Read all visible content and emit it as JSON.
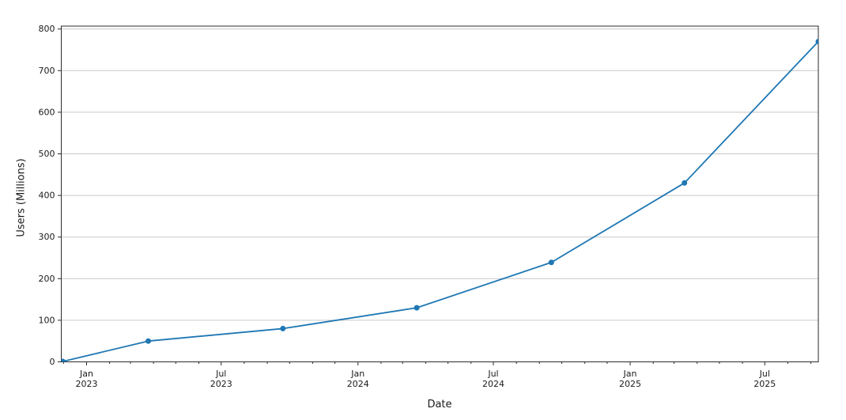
{
  "chart_data": {
    "type": "line",
    "title": "",
    "xlabel": "Date",
    "ylabel": "Users (Millions)",
    "series": [
      {
        "name": "users-millions",
        "x": [
          "2022-11-30",
          "2023-03-25",
          "2023-09-22",
          "2024-03-20",
          "2024-09-17",
          "2025-03-15",
          "2025-09-11"
        ],
        "values": [
          1,
          50,
          80,
          130,
          239,
          430,
          770
        ]
      }
    ],
    "xlim": [
      "2022-11-28",
      "2025-09-11"
    ],
    "ylim": [
      0,
      807
    ],
    "yticks": [
      0,
      100,
      200,
      300,
      400,
      500,
      600,
      700,
      800
    ],
    "x_major_ticks": [
      {
        "date": "2023-01-01",
        "line1": "Jan",
        "line2": "2023"
      },
      {
        "date": "2023-07-01",
        "line1": "Jul",
        "line2": "2023"
      },
      {
        "date": "2024-01-01",
        "line1": "Jan",
        "line2": "2024"
      },
      {
        "date": "2024-07-01",
        "line1": "Jul",
        "line2": "2024"
      },
      {
        "date": "2025-01-01",
        "line1": "Jan",
        "line2": "2025"
      },
      {
        "date": "2025-07-01",
        "line1": "Jul",
        "line2": "2025"
      }
    ],
    "x_minor_ticks": "monthly",
    "grid": {
      "axis": "y",
      "color": "#c8c8c8"
    },
    "line_color": "#1f77b4",
    "marker": "o",
    "axis_color": "#2b2b2b",
    "background": "#ffffff",
    "legend": null
  }
}
